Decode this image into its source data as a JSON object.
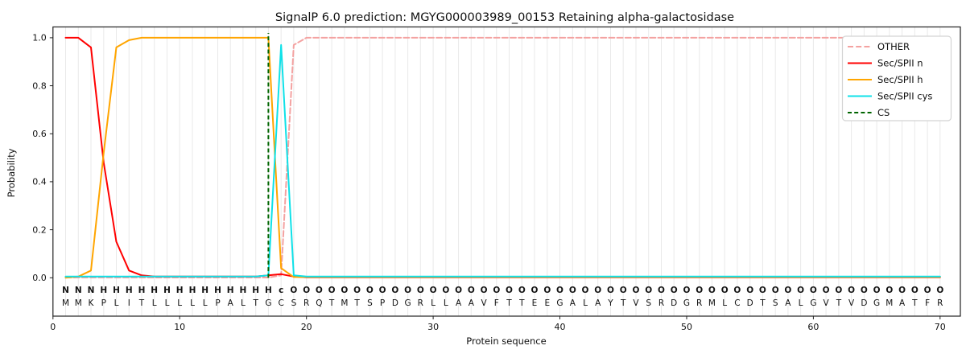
{
  "chart_data": {
    "type": "line",
    "title": "SignalP 6.0 prediction: MGYG000003989_00153 Retaining alpha-galactosidase",
    "xlabel": "Protein sequence",
    "ylabel": "Probability",
    "xlim": [
      0,
      71.6
    ],
    "ylim": [
      -0.16,
      1.045
    ],
    "xticks": [
      0,
      10,
      20,
      30,
      40,
      50,
      60,
      70
    ],
    "yticks": [
      0.0,
      0.2,
      0.4,
      0.6,
      0.8,
      1.0
    ],
    "grid": "vertical line per residue",
    "grid_color": "#e9e9e9",
    "legend_position": "upper right",
    "x": [
      1,
      2,
      3,
      4,
      5,
      6,
      7,
      8,
      9,
      10,
      11,
      12,
      13,
      14,
      15,
      16,
      17,
      18,
      19,
      20,
      21,
      22,
      23,
      24,
      25,
      26,
      27,
      28,
      29,
      30,
      31,
      32,
      33,
      34,
      35,
      36,
      37,
      38,
      39,
      40,
      41,
      42,
      43,
      44,
      45,
      46,
      47,
      48,
      49,
      50,
      51,
      52,
      53,
      54,
      55,
      56,
      57,
      58,
      59,
      60,
      61,
      62,
      63,
      64,
      65,
      66,
      67,
      68,
      69,
      70
    ],
    "series": [
      {
        "name": "OTHER",
        "color": "#f4a2a1",
        "dash": "7 3.2",
        "values": [
          0.001,
          0.001,
          0.001,
          0.001,
          0.001,
          0.001,
          0.001,
          0.001,
          0.001,
          0.001,
          0.001,
          0.001,
          0.001,
          0.001,
          0.001,
          0.001,
          0.001,
          0.01,
          0.97,
          1,
          1,
          1,
          1,
          1,
          1,
          1,
          1,
          1,
          1,
          1,
          1,
          1,
          1,
          1,
          1,
          1,
          1,
          1,
          1,
          1,
          1,
          1,
          1,
          1,
          1,
          1,
          1,
          1,
          1,
          1,
          1,
          1,
          1,
          1,
          1,
          1,
          1,
          1,
          1,
          1,
          1,
          1,
          1,
          1,
          1,
          1,
          1,
          1,
          1,
          1
        ]
      },
      {
        "name": "Sec/SPII n",
        "color": "#ff0000",
        "dash": null,
        "values": [
          1,
          1,
          0.96,
          0.48,
          0.15,
          0.03,
          0.01,
          0.005,
          0.005,
          0.005,
          0.005,
          0.005,
          0.005,
          0.005,
          0.005,
          0.005,
          0.01,
          0.015,
          0.005,
          0.002,
          0.002,
          0.002,
          0.002,
          0.002,
          0.002,
          0.002,
          0.002,
          0.002,
          0.002,
          0.002,
          0.002,
          0.002,
          0.002,
          0.002,
          0.002,
          0.002,
          0.002,
          0.002,
          0.002,
          0.002,
          0.002,
          0.002,
          0.002,
          0.002,
          0.002,
          0.002,
          0.002,
          0.002,
          0.002,
          0.002,
          0.002,
          0.002,
          0.002,
          0.002,
          0.002,
          0.002,
          0.002,
          0.002,
          0.002,
          0.002,
          0.002,
          0.002,
          0.002,
          0.002,
          0.002,
          0.002,
          0.002,
          0.002,
          0.002,
          0.002
        ]
      },
      {
        "name": "Sec/SPII h",
        "color": "#ffa500",
        "dash": null,
        "values": [
          0,
          0.005,
          0.03,
          0.52,
          0.96,
          0.99,
          1,
          1,
          1,
          1,
          1,
          1,
          1,
          1,
          1,
          1,
          1,
          0.04,
          0.003,
          0.003,
          0.003,
          0.003,
          0.003,
          0.003,
          0.003,
          0.003,
          0.003,
          0.003,
          0.003,
          0.003,
          0.003,
          0.003,
          0.003,
          0.003,
          0.003,
          0.003,
          0.003,
          0.003,
          0.003,
          0.003,
          0.003,
          0.003,
          0.003,
          0.003,
          0.003,
          0.003,
          0.003,
          0.003,
          0.003,
          0.003,
          0.003,
          0.003,
          0.003,
          0.003,
          0.003,
          0.003,
          0.003,
          0.003,
          0.003,
          0.003,
          0.003,
          0.003,
          0.003,
          0.003,
          0.003,
          0.003,
          0.003,
          0.003,
          0.003,
          0.003
        ]
      },
      {
        "name": "Sec/SPII cys",
        "color": "#0fe1e8",
        "dash": null,
        "values": [
          0.005,
          0.005,
          0.005,
          0.005,
          0.005,
          0.005,
          0.005,
          0.005,
          0.005,
          0.005,
          0.005,
          0.005,
          0.005,
          0.005,
          0.005,
          0.005,
          0.01,
          0.97,
          0.01,
          0.005,
          0.005,
          0.005,
          0.005,
          0.005,
          0.005,
          0.005,
          0.005,
          0.005,
          0.005,
          0.005,
          0.005,
          0.005,
          0.005,
          0.005,
          0.005,
          0.005,
          0.005,
          0.005,
          0.005,
          0.005,
          0.005,
          0.005,
          0.005,
          0.005,
          0.005,
          0.005,
          0.005,
          0.005,
          0.005,
          0.005,
          0.005,
          0.005,
          0.005,
          0.005,
          0.005,
          0.005,
          0.005,
          0.005,
          0.005,
          0.005,
          0.005,
          0.005,
          0.005,
          0.005,
          0.005,
          0.005,
          0.005,
          0.005,
          0.005,
          0.005
        ]
      }
    ],
    "cs_marker": {
      "name": "CS",
      "x": 17,
      "color": "#006400",
      "dash": "5 3.2"
    },
    "sequence": "MMKPLITLLLLLPALTGCSRQTMTSPDGRLLAAVFTTEEGALAYTVSRDGRMLCDTSALGVTVDGMATFR",
    "annotation": "NNNHHHHHHHHHHHHHHcOOOOOOOOOOOOOOOOOOOOOOOOOOOOOOOOOOOOOOOOOOOOOOOOOOOO",
    "annotation_colors": {
      "N": "#ff0000",
      "H": "#ffa500",
      "c": "#0fe1e8",
      "O": "#8c8c8c"
    },
    "sequence_color": "#1c1c1c"
  }
}
